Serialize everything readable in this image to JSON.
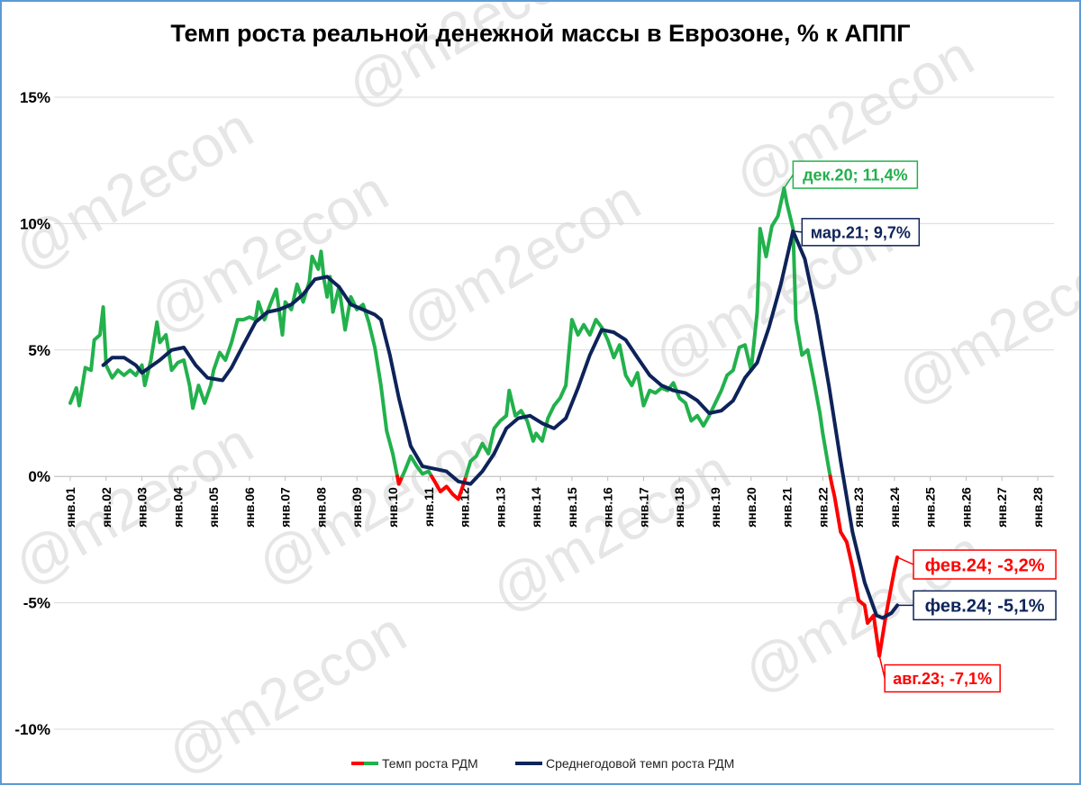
{
  "watermark": "@m2econ",
  "colors": {
    "green": "#22b14c",
    "navy": "#0d2359",
    "red": "#ff0000",
    "grid": "#d9d9d9",
    "border": "#5b9bd5"
  },
  "chart_data": {
    "type": "line",
    "title": "Темп роста реальной денежной массы в Еврозоне, % к АППГ",
    "xlabel": "",
    "ylabel": "",
    "ylim": [
      -10,
      15
    ],
    "yticks": [
      15,
      10,
      5,
      0,
      -5,
      -10
    ],
    "ytick_labels": [
      "15%",
      "10%",
      "5%",
      "0%",
      "-5%",
      "-10%"
    ],
    "xlim": [
      2001,
      2028.6
    ],
    "xticks": [
      2001,
      2002,
      2003,
      2004,
      2005,
      2006,
      2007,
      2008,
      2009,
      2010,
      2011,
      2012,
      2013,
      2014,
      2015,
      2016,
      2017,
      2018,
      2019,
      2020,
      2021,
      2022,
      2023,
      2024,
      2025,
      2026,
      2027,
      2028
    ],
    "xtick_labels": [
      "янв.01",
      "янв.02",
      "янв.03",
      "янв.04",
      "янв.05",
      "янв.06",
      "янв.07",
      "янв.08",
      "янв.09",
      "янв.10",
      "янв.11",
      "янв.12",
      "янв.13",
      "янв.14",
      "янв.15",
      "янв.16",
      "янв.17",
      "янв.18",
      "янв.19",
      "янв.20",
      "янв.21",
      "янв.22",
      "янв.23",
      "янв.24",
      "янв.25",
      "янв.26",
      "янв.27",
      "янв.28"
    ],
    "grid": "horizontal",
    "legend_position": "bottom",
    "series": [
      {
        "name": "Темп роста РДМ",
        "color": "#22b14c",
        "negative_color": "#ff0000",
        "points": [
          [
            2001.0,
            2.9
          ],
          [
            2001.17,
            3.5
          ],
          [
            2001.25,
            2.8
          ],
          [
            2001.42,
            4.3
          ],
          [
            2001.58,
            4.2
          ],
          [
            2001.67,
            5.4
          ],
          [
            2001.83,
            5.6
          ],
          [
            2001.92,
            6.7
          ],
          [
            2002.0,
            4.4
          ],
          [
            2002.17,
            3.9
          ],
          [
            2002.33,
            4.2
          ],
          [
            2002.5,
            4.0
          ],
          [
            2002.67,
            4.2
          ],
          [
            2002.83,
            4.0
          ],
          [
            2003.0,
            4.4
          ],
          [
            2003.08,
            3.6
          ],
          [
            2003.25,
            4.6
          ],
          [
            2003.42,
            6.1
          ],
          [
            2003.5,
            5.3
          ],
          [
            2003.67,
            5.6
          ],
          [
            2003.83,
            4.2
          ],
          [
            2004.0,
            4.5
          ],
          [
            2004.17,
            4.6
          ],
          [
            2004.33,
            3.6
          ],
          [
            2004.42,
            2.7
          ],
          [
            2004.58,
            3.6
          ],
          [
            2004.75,
            2.9
          ],
          [
            2004.92,
            3.6
          ],
          [
            2005.0,
            4.2
          ],
          [
            2005.17,
            4.9
          ],
          [
            2005.33,
            4.6
          ],
          [
            2005.5,
            5.3
          ],
          [
            2005.67,
            6.2
          ],
          [
            2005.83,
            6.2
          ],
          [
            2006.0,
            6.3
          ],
          [
            2006.17,
            6.2
          ],
          [
            2006.25,
            6.9
          ],
          [
            2006.42,
            6.2
          ],
          [
            2006.58,
            6.8
          ],
          [
            2006.75,
            7.4
          ],
          [
            2006.92,
            5.6
          ],
          [
            2007.0,
            6.9
          ],
          [
            2007.17,
            6.6
          ],
          [
            2007.33,
            7.6
          ],
          [
            2007.5,
            6.9
          ],
          [
            2007.67,
            7.7
          ],
          [
            2007.75,
            8.7
          ],
          [
            2007.92,
            8.2
          ],
          [
            2008.0,
            8.9
          ],
          [
            2008.08,
            7.8
          ],
          [
            2008.17,
            7.1
          ],
          [
            2008.25,
            7.9
          ],
          [
            2008.33,
            6.5
          ],
          [
            2008.5,
            7.5
          ],
          [
            2008.67,
            5.8
          ],
          [
            2008.83,
            7.1
          ],
          [
            2009.0,
            6.6
          ],
          [
            2009.17,
            6.8
          ],
          [
            2009.33,
            6.1
          ],
          [
            2009.5,
            5.1
          ],
          [
            2009.67,
            3.6
          ],
          [
            2009.83,
            1.8
          ],
          [
            2010.0,
            0.9
          ],
          [
            2010.17,
            -0.3
          ],
          [
            2010.33,
            0.2
          ],
          [
            2010.5,
            0.8
          ],
          [
            2010.67,
            0.4
          ],
          [
            2010.83,
            0.1
          ],
          [
            2011.0,
            0.2
          ],
          [
            2011.17,
            -0.2
          ],
          [
            2011.33,
            -0.6
          ],
          [
            2011.5,
            -0.4
          ],
          [
            2011.67,
            -0.7
          ],
          [
            2011.83,
            -0.9
          ],
          [
            2012.0,
            -0.2
          ],
          [
            2012.17,
            0.6
          ],
          [
            2012.33,
            0.8
          ],
          [
            2012.5,
            1.3
          ],
          [
            2012.67,
            0.9
          ],
          [
            2012.83,
            1.9
          ],
          [
            2013.0,
            2.2
          ],
          [
            2013.17,
            2.4
          ],
          [
            2013.25,
            3.4
          ],
          [
            2013.42,
            2.4
          ],
          [
            2013.58,
            2.6
          ],
          [
            2013.75,
            2.2
          ],
          [
            2013.92,
            1.4
          ],
          [
            2014.0,
            1.7
          ],
          [
            2014.17,
            1.4
          ],
          [
            2014.33,
            2.3
          ],
          [
            2014.5,
            2.8
          ],
          [
            2014.67,
            3.1
          ],
          [
            2014.83,
            3.6
          ],
          [
            2015.0,
            6.2
          ],
          [
            2015.17,
            5.6
          ],
          [
            2015.33,
            6.0
          ],
          [
            2015.5,
            5.6
          ],
          [
            2015.67,
            6.2
          ],
          [
            2015.83,
            5.9
          ],
          [
            2016.0,
            5.4
          ],
          [
            2016.17,
            4.7
          ],
          [
            2016.33,
            5.2
          ],
          [
            2016.5,
            4.0
          ],
          [
            2016.67,
            3.6
          ],
          [
            2016.83,
            4.1
          ],
          [
            2017.0,
            2.8
          ],
          [
            2017.17,
            3.4
          ],
          [
            2017.33,
            3.3
          ],
          [
            2017.5,
            3.5
          ],
          [
            2017.67,
            3.4
          ],
          [
            2017.83,
            3.7
          ],
          [
            2018.0,
            3.1
          ],
          [
            2018.17,
            2.9
          ],
          [
            2018.33,
            2.2
          ],
          [
            2018.5,
            2.4
          ],
          [
            2018.67,
            2.0
          ],
          [
            2018.83,
            2.4
          ],
          [
            2019.0,
            2.9
          ],
          [
            2019.17,
            3.4
          ],
          [
            2019.33,
            4.0
          ],
          [
            2019.5,
            4.2
          ],
          [
            2019.67,
            5.1
          ],
          [
            2019.83,
            5.2
          ],
          [
            2020.0,
            4.2
          ],
          [
            2020.17,
            6.5
          ],
          [
            2020.25,
            9.8
          ],
          [
            2020.42,
            8.7
          ],
          [
            2020.58,
            9.9
          ],
          [
            2020.75,
            10.3
          ],
          [
            2020.92,
            11.4
          ],
          [
            2021.0,
            10.8
          ],
          [
            2021.17,
            9.8
          ],
          [
            2021.25,
            6.2
          ],
          [
            2021.42,
            4.8
          ],
          [
            2021.58,
            5.0
          ],
          [
            2021.75,
            3.8
          ],
          [
            2021.92,
            2.5
          ],
          [
            2022.0,
            1.7
          ],
          [
            2022.17,
            0.3
          ],
          [
            2022.25,
            -0.3
          ],
          [
            2022.33,
            -0.8
          ],
          [
            2022.5,
            -2.2
          ],
          [
            2022.67,
            -2.6
          ],
          [
            2022.83,
            -3.6
          ],
          [
            2023.0,
            -4.9
          ],
          [
            2023.17,
            -5.1
          ],
          [
            2023.25,
            -5.8
          ],
          [
            2023.42,
            -5.5
          ],
          [
            2023.58,
            -7.1
          ],
          [
            2023.75,
            -5.6
          ],
          [
            2023.92,
            -4.3
          ],
          [
            2024.0,
            -3.7
          ],
          [
            2024.08,
            -3.2
          ]
        ]
      },
      {
        "name": "Среднегодовой темп роста РДМ",
        "color": "#0d2359",
        "points": [
          [
            2001.92,
            4.4
          ],
          [
            2002.17,
            4.7
          ],
          [
            2002.5,
            4.7
          ],
          [
            2002.83,
            4.4
          ],
          [
            2003.0,
            4.1
          ],
          [
            2003.5,
            4.6
          ],
          [
            2003.83,
            5.0
          ],
          [
            2004.17,
            5.1
          ],
          [
            2004.5,
            4.4
          ],
          [
            2004.83,
            3.9
          ],
          [
            2005.25,
            3.8
          ],
          [
            2005.5,
            4.3
          ],
          [
            2005.83,
            5.2
          ],
          [
            2006.17,
            6.1
          ],
          [
            2006.5,
            6.5
          ],
          [
            2006.83,
            6.6
          ],
          [
            2007.17,
            6.8
          ],
          [
            2007.5,
            7.2
          ],
          [
            2007.83,
            7.8
          ],
          [
            2008.17,
            7.9
          ],
          [
            2008.5,
            7.5
          ],
          [
            2008.83,
            6.8
          ],
          [
            2009.17,
            6.6
          ],
          [
            2009.5,
            6.4
          ],
          [
            2009.67,
            6.2
          ],
          [
            2009.92,
            4.8
          ],
          [
            2010.17,
            3.1
          ],
          [
            2010.5,
            1.2
          ],
          [
            2010.83,
            0.4
          ],
          [
            2011.17,
            0.3
          ],
          [
            2011.5,
            0.2
          ],
          [
            2011.83,
            -0.2
          ],
          [
            2012.17,
            -0.3
          ],
          [
            2012.5,
            0.2
          ],
          [
            2012.83,
            0.9
          ],
          [
            2013.17,
            1.9
          ],
          [
            2013.5,
            2.3
          ],
          [
            2013.83,
            2.4
          ],
          [
            2014.17,
            2.1
          ],
          [
            2014.5,
            1.9
          ],
          [
            2014.83,
            2.3
          ],
          [
            2015.17,
            3.5
          ],
          [
            2015.5,
            4.8
          ],
          [
            2015.83,
            5.8
          ],
          [
            2016.17,
            5.7
          ],
          [
            2016.5,
            5.4
          ],
          [
            2016.83,
            4.7
          ],
          [
            2017.17,
            4.0
          ],
          [
            2017.5,
            3.6
          ],
          [
            2017.83,
            3.4
          ],
          [
            2018.17,
            3.3
          ],
          [
            2018.5,
            3.0
          ],
          [
            2018.83,
            2.5
          ],
          [
            2019.17,
            2.6
          ],
          [
            2019.5,
            3.0
          ],
          [
            2019.83,
            3.9
          ],
          [
            2020.17,
            4.5
          ],
          [
            2020.5,
            5.9
          ],
          [
            2020.83,
            7.6
          ],
          [
            2021.17,
            9.7
          ],
          [
            2021.5,
            8.6
          ],
          [
            2021.83,
            6.4
          ],
          [
            2022.17,
            3.6
          ],
          [
            2022.5,
            0.6
          ],
          [
            2022.83,
            -2.2
          ],
          [
            2023.17,
            -4.2
          ],
          [
            2023.5,
            -5.5
          ],
          [
            2023.67,
            -5.6
          ],
          [
            2023.92,
            -5.4
          ],
          [
            2024.08,
            -5.1
          ]
        ]
      }
    ],
    "annotations": [
      {
        "text": "дек.20; 11,4%",
        "color": "#22b14c",
        "text_color": "#22b14c",
        "point": [
          2020.92,
          11.4
        ]
      },
      {
        "text": "мар.21; 9,7%",
        "color": "#0d2359",
        "text_color": "#0d2359",
        "point": [
          2021.17,
          9.7
        ]
      },
      {
        "text": "фев.24; -3,2%",
        "color": "#ff0000",
        "text_color": "#ff0000",
        "point": [
          2024.08,
          -3.2
        ]
      },
      {
        "text": "фев.24; -5,1%",
        "color": "#0d2359",
        "text_color": "#0d2359",
        "point": [
          2024.08,
          -5.1
        ]
      },
      {
        "text": "авг.23; -7,1%",
        "color": "#ff0000",
        "text_color": "#ff0000",
        "point": [
          2023.58,
          -7.1
        ]
      }
    ]
  }
}
